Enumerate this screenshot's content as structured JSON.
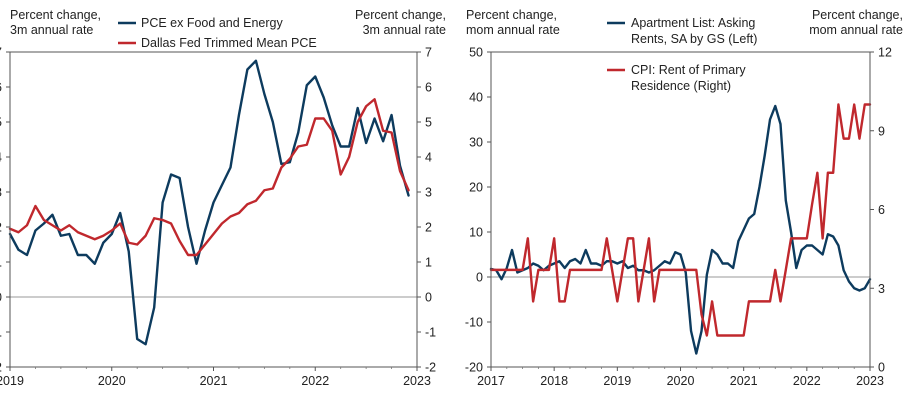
{
  "chart_data": [
    {
      "type": "line",
      "left_axis_label": [
        "Percent change,",
        "3m annual rate"
      ],
      "right_axis_label": [
        "Percent change,",
        "3m annual rate"
      ],
      "ylim": [
        -2,
        7
      ],
      "yticks": [
        -2,
        -1,
        0,
        1,
        2,
        3,
        4,
        5,
        6,
        7
      ],
      "xlim": [
        2019.0,
        2023.0
      ],
      "xticks": [
        2019,
        2020,
        2021,
        2022,
        2023
      ],
      "zero_line": true,
      "legend_placement": "top",
      "series": [
        {
          "name": "PCE ex Food and Energy",
          "color": "#0d3b5e",
          "x": [
            2019.0,
            2019.083,
            2019.167,
            2019.25,
            2019.333,
            2019.417,
            2019.5,
            2019.583,
            2019.667,
            2019.75,
            2019.833,
            2019.917,
            2020.0,
            2020.083,
            2020.167,
            2020.25,
            2020.333,
            2020.417,
            2020.5,
            2020.583,
            2020.667,
            2020.75,
            2020.833,
            2020.917,
            2021.0,
            2021.083,
            2021.167,
            2021.25,
            2021.333,
            2021.417,
            2021.5,
            2021.583,
            2021.667,
            2021.75,
            2021.833,
            2021.917,
            2022.0,
            2022.083,
            2022.167,
            2022.25,
            2022.333,
            2022.417,
            2022.5,
            2022.583,
            2022.667,
            2022.75,
            2022.833,
            2022.917
          ],
          "values": [
            1.8,
            1.35,
            1.2,
            1.9,
            2.1,
            2.35,
            1.75,
            1.8,
            1.2,
            1.2,
            0.95,
            1.55,
            1.8,
            2.4,
            1.3,
            -1.2,
            -1.35,
            -0.3,
            2.7,
            3.5,
            3.4,
            2.0,
            0.95,
            1.9,
            2.7,
            3.2,
            3.7,
            5.2,
            6.5,
            6.75,
            5.8,
            5.0,
            3.8,
            3.85,
            4.7,
            6.05,
            6.3,
            5.7,
            4.9,
            4.3,
            4.3,
            5.4,
            4.4,
            5.1,
            4.45,
            5.2,
            3.75,
            2.9
          ]
        },
        {
          "name": "Dallas Fed Trimmed Mean PCE",
          "color": "#c0282d",
          "x": [
            2019.0,
            2019.083,
            2019.167,
            2019.25,
            2019.333,
            2019.417,
            2019.5,
            2019.583,
            2019.667,
            2019.75,
            2019.833,
            2019.917,
            2020.0,
            2020.083,
            2020.167,
            2020.25,
            2020.333,
            2020.417,
            2020.5,
            2020.583,
            2020.667,
            2020.75,
            2020.833,
            2020.917,
            2021.0,
            2021.083,
            2021.167,
            2021.25,
            2021.333,
            2021.417,
            2021.5,
            2021.583,
            2021.667,
            2021.75,
            2021.833,
            2021.917,
            2022.0,
            2022.083,
            2022.167,
            2022.25,
            2022.333,
            2022.417,
            2022.5,
            2022.583,
            2022.667,
            2022.75,
            2022.833,
            2022.917
          ],
          "values": [
            1.95,
            1.85,
            2.05,
            2.6,
            2.2,
            2.05,
            1.9,
            2.05,
            1.85,
            1.75,
            1.65,
            1.75,
            1.9,
            2.1,
            1.55,
            1.5,
            1.75,
            2.25,
            2.2,
            2.1,
            1.6,
            1.2,
            1.2,
            1.5,
            1.8,
            2.1,
            2.3,
            2.4,
            2.65,
            2.75,
            3.05,
            3.1,
            3.7,
            3.95,
            4.3,
            4.35,
            5.1,
            5.1,
            4.75,
            3.5,
            4.0,
            5.0,
            5.45,
            5.65,
            4.75,
            4.7,
            3.6,
            3.05
          ]
        }
      ],
      "x_tick_labels": [
        "2019",
        "2020",
        "2021",
        "2022",
        "2023"
      ],
      "y_tick_labels": [
        "-2",
        "-1",
        "0",
        "1",
        "2",
        "3",
        "4",
        "5",
        "6",
        "7"
      ]
    },
    {
      "type": "line",
      "left_axis_label": [
        "Percent change,",
        "mom annual rate"
      ],
      "right_axis_label": [
        "Percent change,",
        "mom annual rate"
      ],
      "ylim_left": [
        -20,
        50
      ],
      "yticks_left": [
        -20,
        -10,
        0,
        10,
        20,
        30,
        40,
        50
      ],
      "ylim_right": [
        0,
        12
      ],
      "yticks_right": [
        0,
        3,
        6,
        9,
        12
      ],
      "xlim": [
        2017.0,
        2023.0
      ],
      "xticks": [
        2017,
        2018,
        2019,
        2020,
        2021,
        2022,
        2023
      ],
      "zero_line": true,
      "legend_placement": "top",
      "series": [
        {
          "name": "Apartment List: Asking Rents, SA by GS (Left)",
          "axis": "left",
          "color": "#0d3b5e",
          "x": [
            2017.0,
            2017.083,
            2017.167,
            2017.25,
            2017.333,
            2017.417,
            2017.5,
            2017.583,
            2017.667,
            2017.75,
            2017.833,
            2017.917,
            2018.0,
            2018.083,
            2018.167,
            2018.25,
            2018.333,
            2018.417,
            2018.5,
            2018.583,
            2018.667,
            2018.75,
            2018.833,
            2018.917,
            2019.0,
            2019.083,
            2019.167,
            2019.25,
            2019.333,
            2019.417,
            2019.5,
            2019.583,
            2019.667,
            2019.75,
            2019.833,
            2019.917,
            2020.0,
            2020.083,
            2020.167,
            2020.25,
            2020.333,
            2020.417,
            2020.5,
            2020.583,
            2020.667,
            2020.75,
            2020.833,
            2020.917,
            2021.0,
            2021.083,
            2021.167,
            2021.25,
            2021.333,
            2021.417,
            2021.5,
            2021.583,
            2021.667,
            2021.75,
            2021.833,
            2021.917,
            2022.0,
            2022.083,
            2022.167,
            2022.25,
            2022.333,
            2022.417,
            2022.5,
            2022.583,
            2022.667,
            2022.75,
            2022.833,
            2022.917,
            2023.0
          ],
          "values": [
            1.8,
            1.5,
            -0.5,
            2.0,
            6.0,
            1.0,
            1.5,
            2.0,
            3.0,
            2.5,
            1.5,
            2.5,
            3.0,
            3.5,
            2.0,
            3.5,
            4.0,
            3.0,
            6.0,
            3.0,
            3.0,
            2.5,
            3.5,
            3.5,
            3.0,
            3.5,
            2.0,
            2.5,
            1.5,
            1.5,
            1.0,
            1.5,
            2.5,
            3.5,
            3.0,
            5.5,
            5.0,
            1.0,
            -12.0,
            -17.0,
            -12.0,
            0.5,
            6.0,
            5.0,
            3.0,
            3.0,
            2.0,
            8.0,
            10.5,
            13.0,
            14.0,
            20.0,
            27.0,
            35.0,
            38.0,
            34.0,
            17.0,
            10.0,
            2.0,
            6.0,
            7.0,
            7.0,
            6.0,
            5.0,
            9.5,
            9.0,
            7.0,
            1.5,
            -1.0,
            -2.5,
            -3.0,
            -2.5,
            -0.5
          ]
        },
        {
          "name": "CPI: Rent of Primary Residence (Right)",
          "axis": "right",
          "color": "#c0282d",
          "x": [
            2017.0,
            2017.083,
            2017.167,
            2017.25,
            2017.333,
            2017.417,
            2017.5,
            2017.583,
            2017.667,
            2017.75,
            2017.833,
            2017.917,
            2018.0,
            2018.083,
            2018.167,
            2018.25,
            2018.333,
            2018.417,
            2018.5,
            2018.583,
            2018.667,
            2018.75,
            2018.833,
            2018.917,
            2019.0,
            2019.083,
            2019.167,
            2019.25,
            2019.333,
            2019.417,
            2019.5,
            2019.583,
            2019.667,
            2019.75,
            2019.833,
            2019.917,
            2020.0,
            2020.083,
            2020.167,
            2020.25,
            2020.333,
            2020.417,
            2020.5,
            2020.583,
            2020.667,
            2020.75,
            2020.833,
            2020.917,
            2021.0,
            2021.083,
            2021.167,
            2021.25,
            2021.333,
            2021.417,
            2021.5,
            2021.583,
            2021.667,
            2021.75,
            2021.833,
            2021.917,
            2022.0,
            2022.083,
            2022.167,
            2022.25,
            2022.333,
            2022.417,
            2022.5,
            2022.583,
            2022.667,
            2022.75,
            2022.833,
            2022.917,
            2023.0
          ],
          "values": [
            3.7,
            3.7,
            3.7,
            3.7,
            3.7,
            3.7,
            3.7,
            4.9,
            2.5,
            3.7,
            3.7,
            3.7,
            4.9,
            2.5,
            2.5,
            3.7,
            3.7,
            3.7,
            3.7,
            3.7,
            3.7,
            3.7,
            4.9,
            3.7,
            2.5,
            3.7,
            4.9,
            4.9,
            2.5,
            3.7,
            4.9,
            2.5,
            3.7,
            3.7,
            3.7,
            3.7,
            3.7,
            3.7,
            3.7,
            3.7,
            2.0,
            1.2,
            2.5,
            1.2,
            1.2,
            1.2,
            1.2,
            1.2,
            1.2,
            2.5,
            2.5,
            2.5,
            2.5,
            2.5,
            3.7,
            2.5,
            3.7,
            4.9,
            4.9,
            4.9,
            4.9,
            6.2,
            7.4,
            4.9,
            7.4,
            7.4,
            10.0,
            8.7,
            8.7,
            10.0,
            8.7,
            10.0,
            10.0
          ]
        }
      ],
      "x_tick_labels": [
        "2017",
        "2018",
        "2019",
        "2020",
        "2021",
        "2022",
        "2023"
      ],
      "y_tick_labels_left": [
        "-20",
        "-10",
        "0",
        "10",
        "20",
        "30",
        "40",
        "50"
      ],
      "y_tick_labels_right": [
        "0",
        "3",
        "6",
        "9",
        "12"
      ]
    }
  ],
  "legends": {
    "left": [
      "PCE ex Food and Energy",
      "Dallas Fed Trimmed Mean PCE"
    ],
    "right": [
      [
        "Apartment List: Asking",
        "Rents, SA by GS (Left)"
      ],
      [
        "CPI: Rent of Primary",
        "Residence (Right)"
      ]
    ]
  }
}
